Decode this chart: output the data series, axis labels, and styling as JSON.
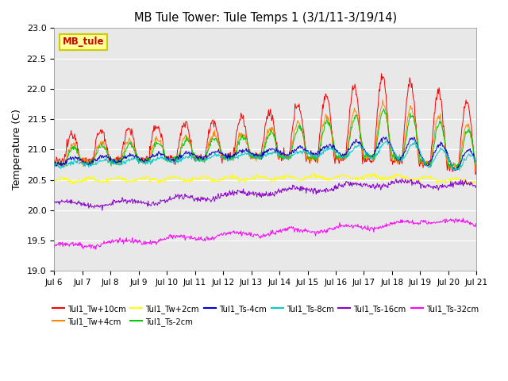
{
  "title": "MB Tule Tower: Tule Temps 1 (3/1/11-3/19/14)",
  "ylabel": "Temperature (C)",
  "ylim": [
    19.0,
    23.0
  ],
  "yticks": [
    19.0,
    19.5,
    20.0,
    20.5,
    21.0,
    21.5,
    22.0,
    22.5,
    23.0
  ],
  "xtick_labels": [
    "Jul 6",
    "Jul 7",
    "Jul 8",
    "Jul 9",
    "Jul 10",
    "Jul 11",
    "Jul 12",
    "Jul 13",
    "Jul 14",
    "Jul 15",
    "Jul 16",
    "Jul 17",
    "Jul 18",
    "Jul 19",
    "Jul 20",
    "Jul 21"
  ],
  "bg_color": "#e8e8e8",
  "fig_bg_color": "#ffffff",
  "series": [
    {
      "label": "Tul1_Tw+10cm",
      "color": "#ff0000"
    },
    {
      "label": "Tul1_Tw+4cm",
      "color": "#ff8800"
    },
    {
      "label": "Tul1_Tw+2cm",
      "color": "#ffff00"
    },
    {
      "label": "Tul1_Ts-2cm",
      "color": "#00cc00"
    },
    {
      "label": "Tul1_Ts-4cm",
      "color": "#0000cc"
    },
    {
      "label": "Tul1_Ts-8cm",
      "color": "#00cccc"
    },
    {
      "label": "Tul1_Ts-16cm",
      "color": "#8800cc"
    },
    {
      "label": "Tul1_Ts-32cm",
      "color": "#ff00ff"
    }
  ],
  "watermark_text": "MB_tule",
  "watermark_color": "#cc0000",
  "watermark_bg": "#ffff99",
  "watermark_border": "#cccc00",
  "legend_ncol": 6
}
